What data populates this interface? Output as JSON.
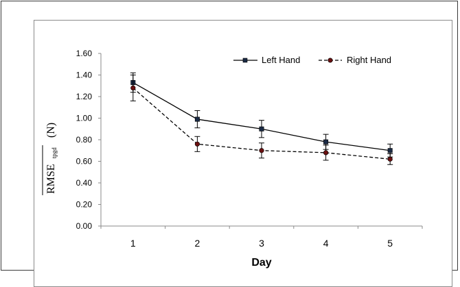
{
  "chart_data": {
    "type": "line",
    "categories": [
      "1",
      "2",
      "3",
      "4",
      "5"
    ],
    "ylim": [
      0.0,
      1.6
    ],
    "yticks": [
      "0.00",
      "0.20",
      "0.40",
      "0.60",
      "0.80",
      "1.00",
      "1.20",
      "1.40",
      "1.60"
    ],
    "xlabel": "Day",
    "ylabel": {
      "main": "RMSE",
      "sub": "tpgd",
      "unit": "(N)"
    },
    "grid": false,
    "legend_position": "top-right",
    "series": [
      {
        "name": "Left Hand",
        "values": [
          1.33,
          0.99,
          0.9,
          0.78,
          0.7
        ],
        "errors": [
          0.09,
          0.08,
          0.08,
          0.07,
          0.06
        ],
        "color": "#000000",
        "marker_color": "#1a2a44",
        "line_style": "solid",
        "marker": "square"
      },
      {
        "name": "Right Hand",
        "values": [
          1.28,
          0.76,
          0.7,
          0.68,
          0.62
        ],
        "errors": [
          0.12,
          0.07,
          0.07,
          0.07,
          0.05
        ],
        "color": "#000000",
        "marker_color": "#6a1010",
        "line_style": "dashed",
        "marker": "circle"
      }
    ]
  }
}
